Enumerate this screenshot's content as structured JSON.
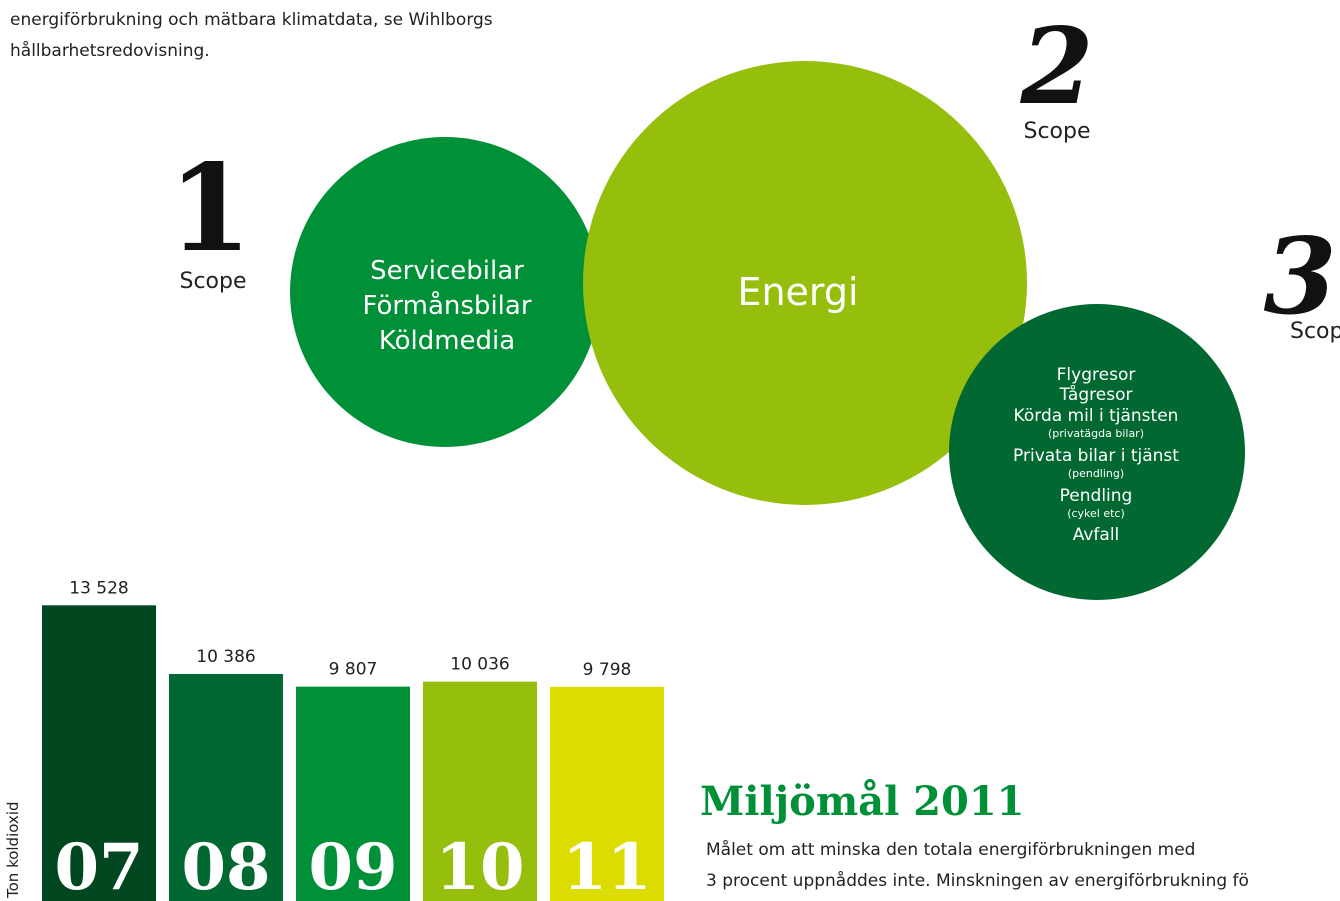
{
  "intro": {
    "lines": [
      "energiförbrukning och mätbara klimatdata, se Wihlborgs",
      "hållbarhetsredovisning."
    ]
  },
  "scopes": [
    {
      "number": "1",
      "label": "Scope",
      "items": [
        {
          "text": "Servicebilar"
        },
        {
          "text": "Förmånsbilar"
        },
        {
          "text": "Köldmedia"
        }
      ]
    },
    {
      "number": "2",
      "label": "Scope",
      "items": [
        {
          "text": "Energi"
        }
      ]
    },
    {
      "number": "3",
      "label": "Scope",
      "items": [
        {
          "text": "Flygresor"
        },
        {
          "text": "Tågresor"
        },
        {
          "text": "Körda mil i tjänsten",
          "note": "(privatägda bilar)"
        },
        {
          "text": "Privata bilar i tjänst",
          "note": "(pendling)"
        },
        {
          "text": "Pendling",
          "note": "(cykel etc)"
        },
        {
          "text": "Avfall"
        }
      ]
    }
  ],
  "goal": {
    "title": "Miljömål 2011",
    "lines": [
      "Målet om att minska den totala energiförbrukningen med",
      "3 procent uppnåddes inte. Minskningen av energiförbrukning fö"
    ]
  },
  "chart_data": {
    "type": "bar",
    "y_label": "Ton koldioxid",
    "categories": [
      "07",
      "08",
      "09",
      "10",
      "11"
    ],
    "values": [
      13528,
      10386,
      9807,
      10036,
      9798
    ],
    "value_labels": [
      "13 528",
      "10 386",
      "9 807",
      "10 036",
      "9 798"
    ],
    "colors": [
      "#00461f",
      "#006830",
      "#009038",
      "#96bf0d",
      "#dddc00"
    ],
    "ylim": [
      0,
      14000
    ]
  }
}
